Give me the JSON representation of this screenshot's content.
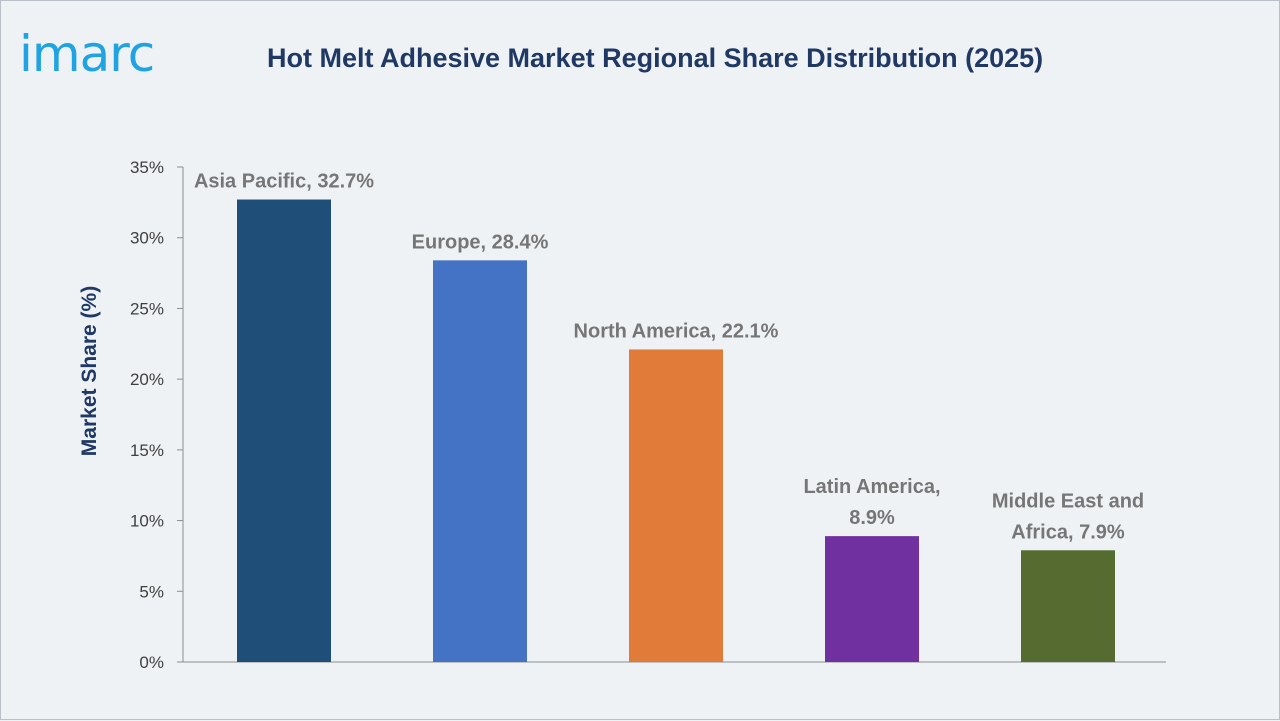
{
  "brand": {
    "logo_text": "imarc",
    "logo_color": "#1fa3e3"
  },
  "chart_data": {
    "type": "bar",
    "title": "Hot Melt Adhesive Market Regional Share Distribution (2025)",
    "xlabel": "",
    "ylabel": "Market Share (%)",
    "ylim": [
      0,
      35
    ],
    "yticks": [
      0,
      5,
      10,
      15,
      20,
      25,
      30,
      35
    ],
    "ytick_labels": [
      "0%",
      "5%",
      "10%",
      "15%",
      "20%",
      "25%",
      "30%",
      "35%"
    ],
    "categories": [
      "Asia Pacific",
      "Europe",
      "North America",
      "Latin America",
      "Middle East and Africa"
    ],
    "values": [
      32.7,
      28.4,
      22.1,
      8.9,
      7.9
    ],
    "data_labels": [
      [
        "Asia Pacific, 32.7%"
      ],
      [
        "Europe, 28.4%"
      ],
      [
        "North America, 22.1%"
      ],
      [
        "Latin America,",
        "8.9%"
      ],
      [
        "Middle East and",
        "Africa, 7.9%"
      ]
    ],
    "colors": [
      "#1f4e79",
      "#4472c4",
      "#e07b39",
      "#7030a0",
      "#556b2f"
    ],
    "grid": false,
    "legend": "none"
  }
}
